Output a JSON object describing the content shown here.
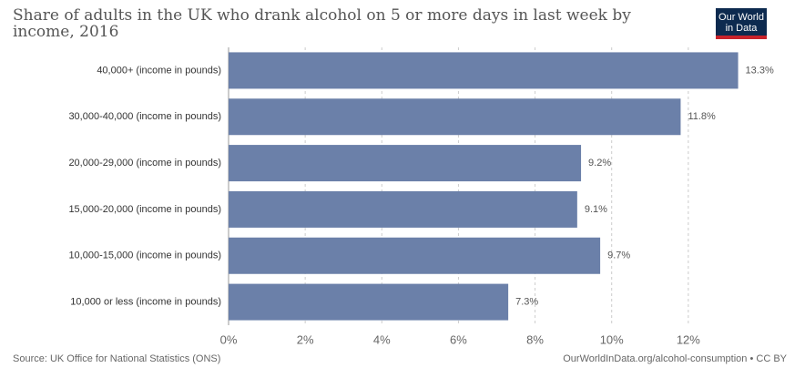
{
  "chart_data": {
    "type": "bar",
    "orientation": "horizontal",
    "title": "Share of adults in the UK who drank alcohol on 5 or more days in last week by income, 2016",
    "logo": "Our World in Data",
    "categories": [
      "40,000+ (income in pounds)",
      "30,000-40,000 (income in pounds)",
      "20,000-29,000 (income in pounds)",
      "15,000-20,000 (income in pounds)",
      "10,000-15,000 (income in pounds)",
      "10,000 or less (income in pounds)"
    ],
    "values": [
      13.3,
      11.8,
      9.2,
      9.1,
      9.7,
      7.3
    ],
    "value_labels": [
      "13.3%",
      "11.8%",
      "9.2%",
      "9.1%",
      "9.7%",
      "7.3%"
    ],
    "color": "#6b80a9",
    "xlim": [
      0,
      14
    ],
    "xticks": [
      {
        "value": 0,
        "label": "0%"
      },
      {
        "value": 2,
        "label": "2%"
      },
      {
        "value": 4,
        "label": "4%"
      },
      {
        "value": 6,
        "label": "6%"
      },
      {
        "value": 8,
        "label": "8%"
      },
      {
        "value": 10,
        "label": "10%"
      },
      {
        "value": 12,
        "label": "12%"
      }
    ],
    "grid": true,
    "source": "Source: UK Office for National Statistics (ONS)",
    "url": "OurWorldInData.org/alcohol-consumption • CC BY"
  }
}
